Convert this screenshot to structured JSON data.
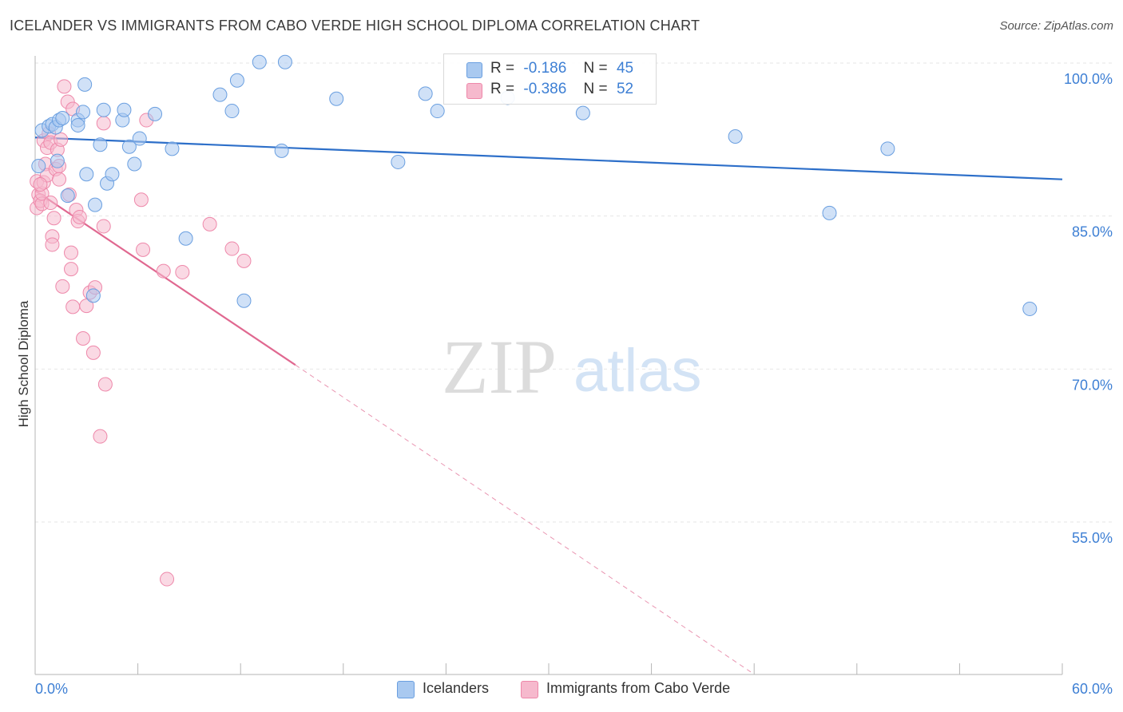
{
  "title": "ICELANDER VS IMMIGRANTS FROM CABO VERDE HIGH SCHOOL DIPLOMA CORRELATION CHART",
  "source": "Source: ZipAtlas.com",
  "watermark": {
    "zip": "ZIP",
    "atlas": "atlas"
  },
  "legend_top": [
    {
      "r_label": "R =",
      "r_value": "-0.186",
      "n_label": "N =",
      "n_value": "45"
    },
    {
      "r_label": "R =",
      "r_value": "-0.386",
      "n_label": "N =",
      "n_value": "52"
    }
  ],
  "legend_bottom": [
    "Icelanders",
    "Immigrants from Cabo Verde"
  ],
  "colors": {
    "blue_fill": "#a9c9f0",
    "blue_stroke": "#6a9fe0",
    "blue_line": "#2d6fc9",
    "pink_fill": "#f6b9cd",
    "pink_stroke": "#ee88aa",
    "pink_line": "#e06890",
    "tick_text": "#3d7fd4",
    "grid": "#e6e6e6"
  },
  "chart_data": {
    "type": "scatter",
    "title": "ICELANDER VS IMMIGRANTS FROM CABO VERDE HIGH SCHOOL DIPLOMA CORRELATION CHART",
    "xlabel": "",
    "ylabel": "High School Diploma",
    "xlim": [
      0,
      60
    ],
    "ylim": [
      40,
      101
    ],
    "x_tick_labels": [
      "0.0%",
      "60.0%"
    ],
    "y_ticks": [
      55,
      70,
      85,
      100
    ],
    "y_tick_labels": [
      "55.0%",
      "70.0%",
      "85.0%",
      "100.0%"
    ],
    "grid": true,
    "legend_position": "top-center",
    "series": [
      {
        "name": "Icelanders",
        "r": -0.186,
        "n": 45,
        "trend": {
          "x": [
            0,
            60
          ],
          "y": [
            92.7,
            88.6
          ],
          "dashed_from_x": null
        },
        "points": [
          [
            0.2,
            89.9
          ],
          [
            0.4,
            93.4
          ],
          [
            0.8,
            93.8
          ],
          [
            1.0,
            94.0
          ],
          [
            1.2,
            93.7
          ],
          [
            1.4,
            94.4
          ],
          [
            1.6,
            94.6
          ],
          [
            1.9,
            87.0
          ],
          [
            1.3,
            90.4
          ],
          [
            2.5,
            94.4
          ],
          [
            2.5,
            93.9
          ],
          [
            2.8,
            95.2
          ],
          [
            4.0,
            95.4
          ],
          [
            2.9,
            97.9
          ],
          [
            3.0,
            89.1
          ],
          [
            3.5,
            86.1
          ],
          [
            3.8,
            92.0
          ],
          [
            4.2,
            88.2
          ],
          [
            4.5,
            89.1
          ],
          [
            5.1,
            94.4
          ],
          [
            5.5,
            91.8
          ],
          [
            5.2,
            95.4
          ],
          [
            5.8,
            90.1
          ],
          [
            6.1,
            92.6
          ],
          [
            7.0,
            95.0
          ],
          [
            8.0,
            91.6
          ],
          [
            8.8,
            82.8
          ],
          [
            10.8,
            96.9
          ],
          [
            11.5,
            95.3
          ],
          [
            11.8,
            98.3
          ],
          [
            12.2,
            76.7
          ],
          [
            13.1,
            100.1
          ],
          [
            14.4,
            91.4
          ],
          [
            14.6,
            100.1
          ],
          [
            17.6,
            96.5
          ],
          [
            21.2,
            90.3
          ],
          [
            22.8,
            97.0
          ],
          [
            23.5,
            95.3
          ],
          [
            27.6,
            96.6
          ],
          [
            32.0,
            95.1
          ],
          [
            40.9,
            92.8
          ],
          [
            46.4,
            85.3
          ],
          [
            49.8,
            91.6
          ],
          [
            58.1,
            75.9
          ],
          [
            3.4,
            77.2
          ]
        ]
      },
      {
        "name": "Immigrants from Cabo Verde",
        "r": -0.386,
        "n": 52,
        "trend": {
          "x": [
            0,
            15.2,
            41.8
          ],
          "y": [
            87.5,
            70.4,
            40.3
          ],
          "dashed_from_x": 15.2
        },
        "points": [
          [
            0.1,
            85.8
          ],
          [
            0.1,
            88.4
          ],
          [
            0.2,
            87.1
          ],
          [
            0.3,
            86.5
          ],
          [
            0.4,
            86.2
          ],
          [
            0.4,
            87.2
          ],
          [
            0.5,
            88.3
          ],
          [
            0.5,
            92.4
          ],
          [
            0.6,
            90.1
          ],
          [
            0.7,
            91.7
          ],
          [
            0.7,
            89.0
          ],
          [
            0.8,
            93.1
          ],
          [
            0.9,
            92.2
          ],
          [
            0.9,
            86.3
          ],
          [
            1.0,
            83.0
          ],
          [
            1.0,
            82.2
          ],
          [
            1.1,
            84.8
          ],
          [
            1.2,
            89.6
          ],
          [
            1.3,
            91.5
          ],
          [
            1.4,
            89.9
          ],
          [
            1.4,
            88.6
          ],
          [
            1.5,
            92.5
          ],
          [
            1.6,
            78.1
          ],
          [
            1.7,
            97.7
          ],
          [
            1.9,
            96.2
          ],
          [
            2.0,
            87.1
          ],
          [
            2.1,
            81.4
          ],
          [
            2.1,
            79.8
          ],
          [
            2.2,
            76.1
          ],
          [
            2.2,
            95.5
          ],
          [
            2.4,
            85.6
          ],
          [
            2.5,
            84.5
          ],
          [
            2.6,
            84.9
          ],
          [
            2.8,
            73.0
          ],
          [
            3.0,
            76.2
          ],
          [
            3.2,
            77.5
          ],
          [
            3.4,
            71.6
          ],
          [
            3.5,
            78.0
          ],
          [
            3.8,
            63.4
          ],
          [
            4.0,
            94.1
          ],
          [
            4.1,
            68.5
          ],
          [
            4.0,
            84.0
          ],
          [
            6.2,
            86.6
          ],
          [
            6.3,
            81.7
          ],
          [
            6.5,
            94.4
          ],
          [
            7.5,
            79.6
          ],
          [
            7.7,
            49.4
          ],
          [
            8.6,
            79.5
          ],
          [
            10.2,
            84.2
          ],
          [
            11.5,
            81.8
          ],
          [
            12.2,
            80.6
          ],
          [
            0.3,
            88.1
          ]
        ]
      }
    ]
  }
}
